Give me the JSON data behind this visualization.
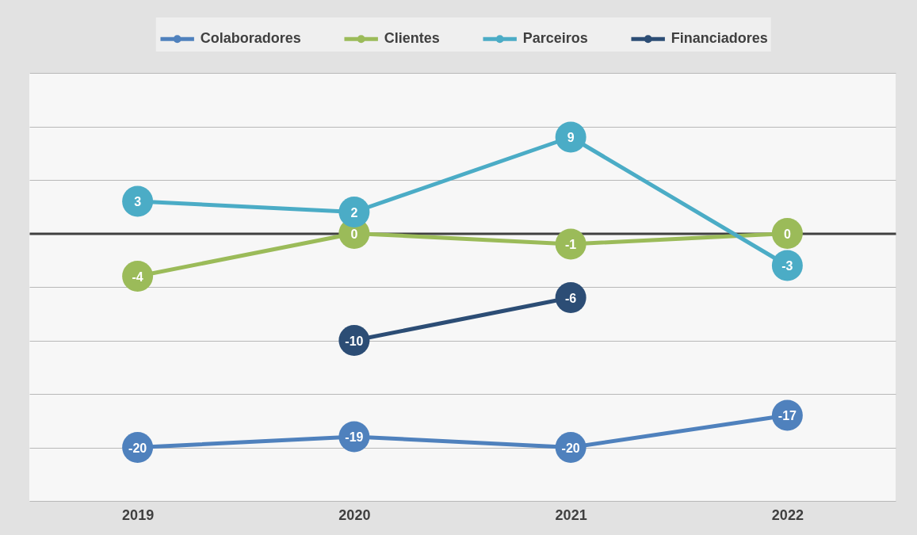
{
  "chart_data": {
    "type": "line",
    "categories": [
      "2019",
      "2020",
      "2021",
      "2022"
    ],
    "series": [
      {
        "name": "Colaboradores",
        "color": "#4f81bd",
        "values": [
          -20,
          -19,
          -20,
          -17
        ]
      },
      {
        "name": "Clientes",
        "color": "#9bbb59",
        "values": [
          -4,
          0,
          -1,
          0
        ]
      },
      {
        "name": "Parceiros",
        "color": "#4bacc6",
        "values": [
          3,
          2,
          9,
          -3
        ]
      },
      {
        "name": "Financiadores",
        "color": "#2c4d75",
        "values": [
          null,
          -10,
          -6,
          null
        ]
      }
    ],
    "ylim": [
      -25,
      15
    ],
    "yticks": [
      {
        "value": -25,
        "label": null
      },
      {
        "value": -20,
        "label": null
      },
      {
        "value": -15,
        "label": null
      },
      {
        "value": -10,
        "label": null
      },
      {
        "value": -5,
        "label": null
      },
      {
        "value": 0,
        "label": null
      },
      {
        "value": 5,
        "label": null
      },
      {
        "value": 10,
        "label": null
      },
      {
        "value": 15,
        "label": null
      }
    ],
    "tick_labels": "x",
    "grid": "y",
    "legend": "top",
    "marker": "circle",
    "line_style": "solid",
    "data_labels": true
  }
}
